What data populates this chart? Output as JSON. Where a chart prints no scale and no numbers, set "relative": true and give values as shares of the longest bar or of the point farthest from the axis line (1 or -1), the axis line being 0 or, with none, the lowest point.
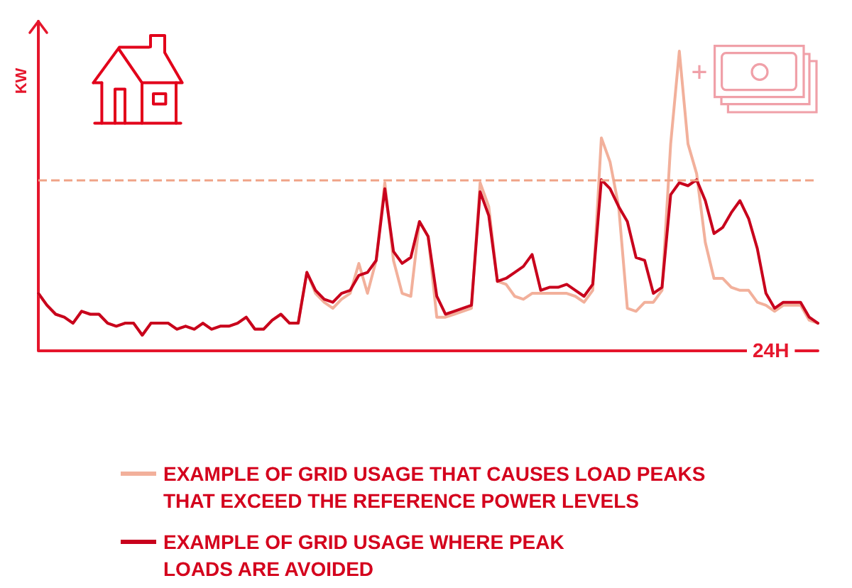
{
  "chart_data": {
    "type": "line",
    "relative": true,
    "ylabel": "KW",
    "xlabel": "24H",
    "legend": "bottom",
    "categories": [
      null,
      null,
      null,
      null,
      null,
      null,
      null,
      null,
      null,
      null,
      null,
      null,
      null,
      null,
      null,
      null,
      null,
      null,
      null,
      null,
      null,
      null,
      null,
      null,
      null,
      null,
      null,
      null,
      null,
      null,
      null,
      null,
      null,
      null,
      null,
      null,
      null,
      null,
      null,
      null,
      null,
      null,
      null,
      null,
      null,
      null,
      null,
      null,
      null,
      null,
      null,
      null,
      null,
      null,
      null,
      null,
      null,
      null,
      null,
      null,
      null,
      null,
      null,
      null,
      null,
      null,
      null,
      null,
      null,
      null,
      null,
      null,
      null,
      null,
      null,
      null,
      null,
      null,
      null,
      null,
      null,
      null,
      null,
      null,
      null,
      null,
      null,
      null,
      null,
      null,
      null
    ],
    "series": [
      {
        "name": "EXAMPLE OF GRID USAGE THAT CAUSES LOAD PEAKS THAT EXCEED THE REFERENCE POWER LEVELS",
        "color": "#f2b09b",
        "values": [
          0.19,
          0.15,
          0.12,
          0.11,
          0.09,
          0.13,
          0.12,
          0.12,
          0.09,
          0.08,
          0.09,
          0.09,
          0.05,
          0.09,
          0.09,
          0.09,
          0.07,
          0.08,
          0.07,
          0.09,
          0.07,
          0.08,
          0.08,
          0.09,
          0.11,
          0.07,
          0.07,
          0.1,
          0.12,
          0.09,
          0.09,
          0.26,
          0.19,
          0.16,
          0.14,
          0.17,
          0.19,
          0.29,
          0.19,
          0.3,
          0.56,
          0.3,
          0.19,
          0.18,
          0.43,
          0.38,
          0.11,
          0.11,
          0.12,
          0.13,
          0.14,
          0.56,
          0.48,
          0.23,
          0.22,
          0.18,
          0.17,
          0.19,
          0.19,
          0.19,
          0.19,
          0.19,
          0.18,
          0.16,
          0.2,
          0.71,
          0.63,
          0.48,
          0.14,
          0.13,
          0.16,
          0.16,
          0.2,
          0.69,
          1,
          0.69,
          0.59,
          0.36,
          0.24,
          0.24,
          0.21,
          0.2,
          0.2,
          0.16,
          0.15,
          0.13,
          0.15,
          0.15,
          0.15,
          0.1,
          0.09
        ]
      },
      {
        "name": "EXAMPLE OF GRID USAGE WHERE PEAK LOADS ARE AVOIDED",
        "color": "#c8001c",
        "values": [
          0.19,
          0.15,
          0.12,
          0.11,
          0.09,
          0.13,
          0.12,
          0.12,
          0.09,
          0.08,
          0.09,
          0.09,
          0.05,
          0.09,
          0.09,
          0.09,
          0.07,
          0.08,
          0.07,
          0.09,
          0.07,
          0.08,
          0.08,
          0.09,
          0.11,
          0.07,
          0.07,
          0.1,
          0.12,
          0.09,
          0.09,
          0.26,
          0.2,
          0.17,
          0.16,
          0.19,
          0.2,
          0.25,
          0.26,
          0.3,
          0.54,
          0.33,
          0.29,
          0.31,
          0.43,
          0.38,
          0.18,
          0.12,
          0.13,
          0.14,
          0.15,
          0.53,
          0.45,
          0.23,
          0.24,
          0.26,
          0.28,
          0.32,
          0.2,
          0.21,
          0.21,
          0.22,
          0.2,
          0.18,
          0.22,
          0.57,
          0.54,
          0.48,
          0.43,
          0.31,
          0.3,
          0.19,
          0.21,
          0.52,
          0.56,
          0.55,
          0.57,
          0.5,
          0.39,
          0.41,
          0.46,
          0.5,
          0.44,
          0.34,
          0.19,
          0.14,
          0.16,
          0.16,
          0.16,
          0.11,
          0.09
        ]
      }
    ],
    "ref_lines": [
      {
        "axis": "y",
        "value": 0.57,
        "color": "#f0a387",
        "line_style": "dashed"
      }
    ]
  }
}
